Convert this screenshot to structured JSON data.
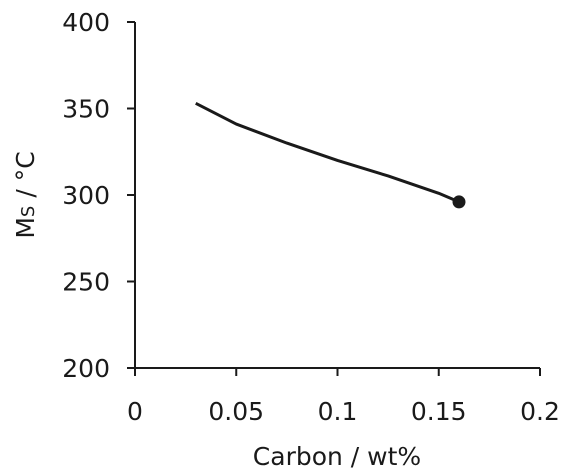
{
  "chart_data": {
    "type": "line",
    "title": "",
    "xlabel": "Carbon / wt%",
    "ylabel_main": "M",
    "ylabel_sub": "S",
    "ylabel_rest": " / °C",
    "xlim": [
      0,
      0.2
    ],
    "ylim": [
      200,
      400
    ],
    "xticks": [
      "0",
      "0.05",
      "0.1",
      "0.15",
      "0.2"
    ],
    "yticks": [
      "200",
      "250",
      "300",
      "350",
      "400"
    ],
    "grid": false,
    "legend": "none",
    "series": [
      {
        "x": [
          0.03,
          0.05,
          0.075,
          0.1,
          0.125,
          0.15,
          0.16
        ],
        "y": [
          353,
          341,
          330,
          320,
          311,
          301,
          296
        ],
        "end_marker": {
          "x": 0.16,
          "y": 296
        },
        "color": "#1a1a1a"
      }
    ]
  }
}
